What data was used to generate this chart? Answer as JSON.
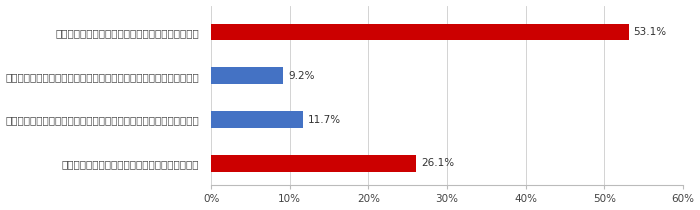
{
  "categories": [
    "カセットこんろもカセットボンベも確認していない",
    "カセットこんろは確認しているが、カセットボンベは確認していない",
    "カセットボンベは確認しているが、カセットこんろは確認していない",
    "カセットこんろもカセットボンベも確認している"
  ],
  "values": [
    53.1,
    9.2,
    11.7,
    26.1
  ],
  "colors": [
    "#cc0000",
    "#4472c4",
    "#4472c4",
    "#cc0000"
  ],
  "labels": [
    "53.1%",
    "9.2%",
    "11.7%",
    "26.1%"
  ],
  "xlim": [
    0,
    60
  ],
  "xticks": [
    0,
    10,
    20,
    30,
    40,
    50,
    60
  ],
  "xticklabels": [
    "0%",
    "10%",
    "20%",
    "30%",
    "40%",
    "50%",
    "60%"
  ],
  "background_color": "#ffffff",
  "bar_height": 0.38,
  "label_fontsize": 7.5,
  "tick_fontsize": 7.5
}
